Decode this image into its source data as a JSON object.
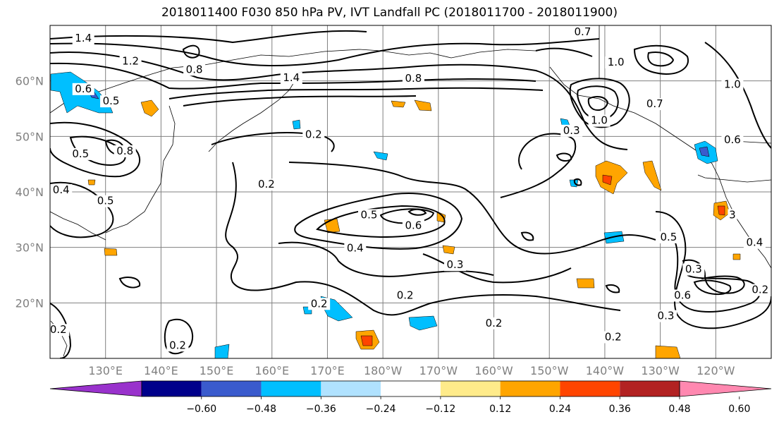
{
  "title": "2018011400 F030 850 hPa PV, IVT Landfall PC (2018011700 - 2018011900)",
  "map": {
    "projection": "PlateCarree",
    "lon_range": [
      120,
      250
    ],
    "lat_range": [
      10,
      70
    ],
    "gridlines": true,
    "lat_ticks": [
      "20°N",
      "30°N",
      "40°N",
      "50°N",
      "60°N"
    ],
    "lon_ticks": [
      "130°E",
      "140°E",
      "150°E",
      "160°E",
      "170°E",
      "180°W",
      "170°W",
      "160°W",
      "150°W",
      "140°W",
      "130°W",
      "120°W"
    ],
    "colors": {
      "contour": "#000000",
      "grid": "#808080",
      "coast": "#000000"
    }
  },
  "contour_labels": [
    {
      "text": "1.4",
      "lon": 126.0,
      "lat": 67.3
    },
    {
      "text": "1.2",
      "lon": 134.5,
      "lat": 63.2
    },
    {
      "text": "0.8",
      "lon": 146.0,
      "lat": 61.7
    },
    {
      "text": "1.4",
      "lon": 163.5,
      "lat": 60.2
    },
    {
      "text": "0.8",
      "lon": 185.5,
      "lat": 60.1
    },
    {
      "text": "0.6",
      "lon": 126.0,
      "lat": 58.2
    },
    {
      "text": "0.5",
      "lon": 131.0,
      "lat": 56.0
    },
    {
      "text": "0.8",
      "lon": 133.5,
      "lat": 47.0
    },
    {
      "text": "0.5",
      "lon": 125.5,
      "lat": 46.5
    },
    {
      "text": "0.4",
      "lon": 122.0,
      "lat": 40.0
    },
    {
      "text": "0.5",
      "lon": 130.0,
      "lat": 38.0
    },
    {
      "text": "0.2",
      "lon": 167.5,
      "lat": 50.0
    },
    {
      "text": "0.2",
      "lon": 159.0,
      "lat": 41.0
    },
    {
      "text": "0.5",
      "lon": 177.5,
      "lat": 35.5
    },
    {
      "text": "0.6",
      "lon": 185.5,
      "lat": 33.6
    },
    {
      "text": "0.4",
      "lon": 175.0,
      "lat": 29.5
    },
    {
      "text": "0.3",
      "lon": 193.0,
      "lat": 26.5
    },
    {
      "text": "0.2",
      "lon": 184.0,
      "lat": 21.0
    },
    {
      "text": "0.2",
      "lon": 168.5,
      "lat": 19.5
    },
    {
      "text": "0.2",
      "lon": 200.0,
      "lat": 16.0
    },
    {
      "text": "0.2",
      "lon": 121.5,
      "lat": 14.8
    },
    {
      "text": "0.2",
      "lon": 143.0,
      "lat": 12.0
    },
    {
      "text": "0.7",
      "lon": 216.0,
      "lat": 68.5
    },
    {
      "text": "0.3",
      "lon": 214.0,
      "lat": 50.7
    },
    {
      "text": "1.0",
      "lon": 219.0,
      "lat": 52.5
    },
    {
      "text": "1.0",
      "lon": 222.0,
      "lat": 63.0
    },
    {
      "text": "0.7",
      "lon": 229.0,
      "lat": 55.5
    },
    {
      "text": "0.6",
      "lon": 243.0,
      "lat": 49.0
    },
    {
      "text": "1.0",
      "lon": 243.0,
      "lat": 59.0
    },
    {
      "text": "0.5",
      "lon": 231.5,
      "lat": 31.5
    },
    {
      "text": "0.3",
      "lon": 236.0,
      "lat": 25.7
    },
    {
      "text": "0.6",
      "lon": 234.0,
      "lat": 21.0
    },
    {
      "text": "0.3",
      "lon": 231.0,
      "lat": 17.3
    },
    {
      "text": "0.2",
      "lon": 221.5,
      "lat": 13.5
    },
    {
      "text": "0.4",
      "lon": 247.0,
      "lat": 30.5
    },
    {
      "text": "3",
      "lon": 243.0,
      "lat": 35.5
    },
    {
      "text": "0.2",
      "lon": 248.0,
      "lat": 22.0
    }
  ],
  "colorbar": {
    "bounds": [
      -0.72,
      -0.6,
      -0.48,
      -0.36,
      -0.24,
      -0.12,
      0.12,
      0.24,
      0.36,
      0.48,
      0.6,
      0.72
    ],
    "colors": [
      "#9932cc",
      "#00008b",
      "#3a5bcd",
      "#00bfff",
      "#b0e2ff",
      "#ffffff",
      "#ffeb8a",
      "#ffa500",
      "#ff4500",
      "#b22222",
      "#ff88b0"
    ],
    "under_color": "#9932cc",
    "over_color": "#ff88b0",
    "tick_labels": [
      "−0.60",
      "−0.48",
      "−0.36",
      "−0.24",
      "−0.12",
      "0.12",
      "0.24",
      "0.36",
      "0.48",
      "0.60"
    ]
  }
}
